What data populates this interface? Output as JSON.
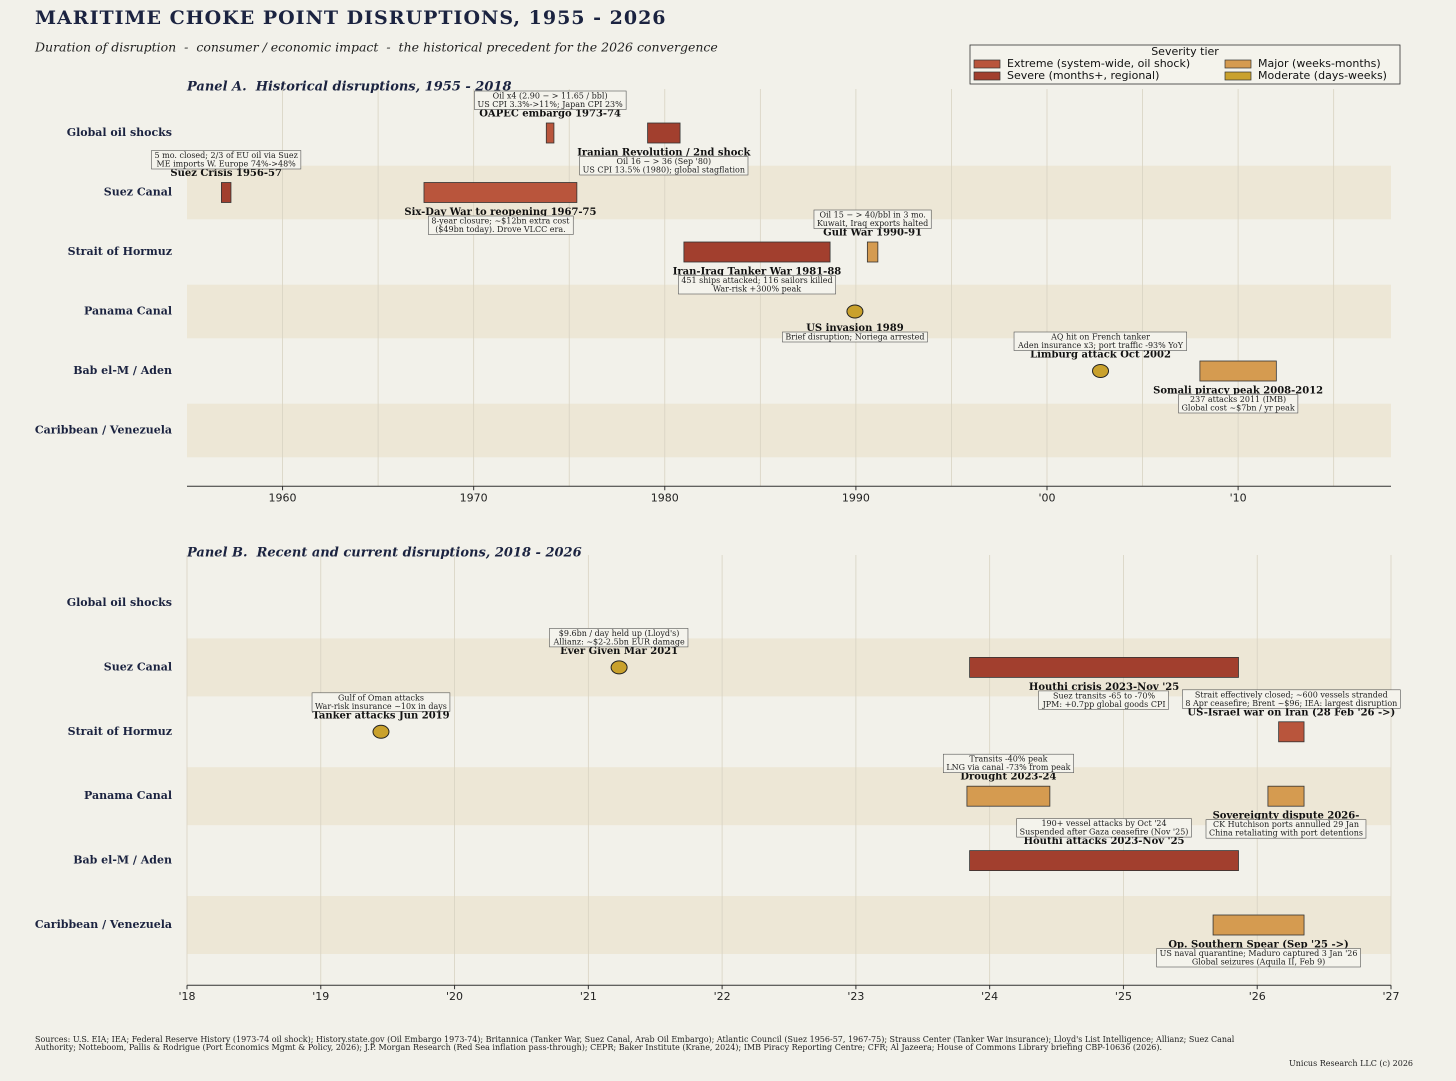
{
  "title": "MARITIME CHOKE POINT DISRUPTIONS, 1955 - 2026",
  "subtitle": "Duration of disruption  -  consumer / economic impact  -  the historical precedent for the 2026 convergence",
  "legend": {
    "title": "Severity tier",
    "items": [
      {
        "name": "Extreme (system-wide, oil shock)",
        "color": "#b9553c"
      },
      {
        "name": "Severe (months+, regional)",
        "color": "#a23f2e"
      },
      {
        "name": "Major (weeks-months)",
        "color": "#d59b50"
      },
      {
        "name": "Moderate (days-weeks)",
        "color": "#c9a12c"
      }
    ]
  },
  "chart_data": [
    {
      "type": "timeline",
      "title": "Panel A.  Historical disruptions, 1955 - 2018",
      "categories": [
        "Global oil shocks",
        "Suez Canal",
        "Strait of Hormuz",
        "Panama Canal",
        "Bab el-M / Aden",
        "Caribbean / Venezuela"
      ],
      "xlim": [
        1955,
        2018
      ],
      "xticks": [
        1960,
        1970,
        1980,
        1990,
        {
          "value": 2000,
          "label": "'00"
        },
        {
          "value": 2010,
          "label": "'10"
        }
      ],
      "minor_xticks": [
        1965,
        1975,
        1985,
        1995,
        2005,
        2015
      ],
      "grid": true,
      "events": [
        {
          "row": 0,
          "start": 1973.8,
          "end": 1974.2,
          "color": "#b9553c",
          "label": "OAPEC embargo 1973-74",
          "label_pos": "above",
          "notes": [
            "Oil x4 (2.90 − > 11.65 / bbl)",
            "US CPI 3.3%->11%; Japan CPI 23%"
          ]
        },
        {
          "row": 0,
          "start": 1979.1,
          "end": 1980.8,
          "color": "#a23f2e",
          "label": "Iranian Revolution / 2nd shock",
          "label_pos": "below",
          "notes": [
            "Oil 16 − > 36 (Sep '80)",
            "US CPI 13.5% (1980); global stagflation"
          ]
        },
        {
          "row": 1,
          "start": 1956.8,
          "end": 1957.3,
          "color": "#a23f2e",
          "label": "Suez Crisis 1956-57",
          "label_pos": "above",
          "notes": [
            "5 mo. closed; 2/3 of EU oil via Suez",
            "ME imports W. Europe 74%->48%"
          ]
        },
        {
          "row": 1,
          "start": 1967.4,
          "end": 1975.4,
          "color": "#b9553c",
          "label": "Six-Day War to reopening 1967-75",
          "label_pos": "below",
          "notes": [
            "8-year closure; ~$12bn extra cost",
            "($49bn today). Drove VLCC era."
          ]
        },
        {
          "row": 2,
          "start": 1981.0,
          "end": 1988.65,
          "color": "#a23f2e",
          "label": "Iran-Iraq Tanker War 1981-88",
          "label_pos": "below",
          "notes": [
            "451 ships attacked; 116 sailors killed",
            "War-risk +300% peak"
          ]
        },
        {
          "row": 2,
          "start": 1990.6,
          "end": 1991.15,
          "color": "#d59b50",
          "label": "Gulf War 1990-91",
          "label_pos": "above",
          "notes": [
            "Oil 15 − > 40/bbl in 3 mo.",
            "Kuwait, Iraq exports halted"
          ]
        },
        {
          "row": 3,
          "date": 1989.95,
          "color": "#c9a12c",
          "label": "US invasion 1989",
          "label_pos": "below",
          "notes": [
            "Brief disruption; Noriega arrested"
          ]
        },
        {
          "row": 4,
          "date": 2002.8,
          "color": "#c9a12c",
          "label": "Limburg attack Oct 2002",
          "label_pos": "above",
          "notes": [
            "AQ hit on French tanker",
            "Aden insurance x3; port traffic -93% YoY"
          ]
        },
        {
          "row": 4,
          "start": 2008.0,
          "end": 2012.0,
          "color": "#d59b50",
          "label": "Somali piracy peak 2008-2012",
          "label_pos": "below",
          "notes": [
            "237 attacks 2011 (IMB)",
            "Global cost ~$7bn / yr peak"
          ]
        }
      ]
    },
    {
      "type": "timeline",
      "title": "Panel B.  Recent and current disruptions, 2018 - 2026",
      "categories": [
        "Global oil shocks",
        "Suez Canal",
        "Strait of Hormuz",
        "Panama Canal",
        "Bab el-M / Aden",
        "Caribbean / Venezuela"
      ],
      "xlim": [
        2018,
        2027
      ],
      "xticks": [
        {
          "value": 2018,
          "label": "'18"
        },
        {
          "value": 2019,
          "label": "'19"
        },
        {
          "value": 2020,
          "label": "'20"
        },
        {
          "value": 2021,
          "label": "'21"
        },
        {
          "value": 2022,
          "label": "'22"
        },
        {
          "value": 2023,
          "label": "'23"
        },
        {
          "value": 2024,
          "label": "'24"
        },
        {
          "value": 2025,
          "label": "'25"
        },
        {
          "value": 2026,
          "label": "'26"
        },
        {
          "value": 2027,
          "label": "'27"
        }
      ],
      "grid": true,
      "events": [
        {
          "row": 1,
          "date": 2021.23,
          "color": "#c9a12c",
          "label": "Ever Given Mar 2021",
          "label_pos": "above",
          "notes": [
            "$9.6bn / day held up (Lloyd's)",
            "Allianz: ~$2-2.5bn EUR damage"
          ]
        },
        {
          "row": 1,
          "start": 2023.85,
          "end": 2025.86,
          "color": "#a23f2e",
          "label": "Houthi crisis 2023-Nov '25",
          "label_pos": "below",
          "notes": [
            "Suez transits -65 to -70%",
            "JPM: +0.7pp global goods CPI"
          ]
        },
        {
          "row": 2,
          "date": 2019.45,
          "color": "#c9a12c",
          "label": "Tanker attacks Jun 2019",
          "label_pos": "above",
          "notes": [
            "Gulf of Oman attacks",
            "War-risk insurance ~10x in days"
          ]
        },
        {
          "row": 2,
          "start": 2026.16,
          "end": 2026.35,
          "color": "#b9553c",
          "label": "US-Israel war on Iran (28 Feb '26 ->)",
          "label_pos": "above",
          "notes": [
            "Strait effectively closed; ~600 vessels stranded",
            "8 Apr ceasefire; Brent ~$96; IEA: largest disruption"
          ]
        },
        {
          "row": 3,
          "start": 2023.83,
          "end": 2024.45,
          "color": "#d59b50",
          "label": "Drought 2023-24",
          "label_pos": "above",
          "notes": [
            "Transits -40% peak",
            "LNG via canal -73% from peak"
          ]
        },
        {
          "row": 3,
          "start": 2026.08,
          "end": 2026.35,
          "color": "#d59b50",
          "label": "Sovereignty dispute 2026-",
          "label_pos": "below",
          "notes": [
            "CK Hutchison ports annulled 29 Jan",
            "China retaliating with port detentions"
          ]
        },
        {
          "row": 4,
          "start": 2023.85,
          "end": 2025.86,
          "color": "#a23f2e",
          "label": "Houthi attacks 2023-Nov '25",
          "label_pos": "above",
          "notes": [
            "190+ vessel attacks by Oct '24",
            "Suspended after Gaza ceasefire (Nov '25)"
          ]
        },
        {
          "row": 5,
          "start": 2025.67,
          "end": 2026.35,
          "color": "#d59b50",
          "label": "Op. Southern Spear (Sep '25 ->)",
          "label_pos": "below",
          "notes": [
            "US naval quarantine; Maduro captured 3 Jan '26",
            "Global seizures (Aquila II, Feb 9)"
          ]
        }
      ]
    }
  ],
  "sources": [
    "Sources: U.S. EIA; IEA; Federal Reserve History (1973-74 oil shock); History.state.gov (Oil Embargo 1973-74); Britannica (Tanker War, Suez Canal, Arab Oil Embargo); Atlantic Council (Suez 1956-57, 1967-75); Strauss Center (Tanker War insurance); Lloyd's List Intelligence; Allianz; Suez Canal",
    "Authority; Notteboom, Pallis & Rodrigue (Port Economics Mgmt & Policy, 2026); J.P. Morgan Research (Red Sea inflation pass-through); CEPR; Baker Institute (Krane, 2024); IMB Piracy Reporting Centre; CFR; Al Jazeera; House of Commons Library briefing CBP-10636 (2026)."
  ],
  "credit": "Unicus Research LLC (c) 2026"
}
